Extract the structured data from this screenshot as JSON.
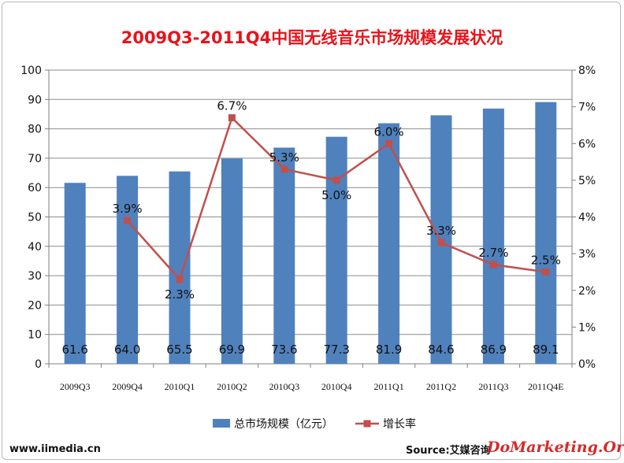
{
  "chart_data": {
    "type": "bar+line",
    "title": "2009Q3-2011Q4中国无线音乐市场规模发展状况",
    "categories": [
      "2009Q3",
      "2009Q4",
      "2010Q1",
      "2010Q2",
      "2010Q3",
      "2010Q4",
      "2011Q1",
      "2011Q2",
      "2011Q3",
      "2011Q4E"
    ],
    "series": [
      {
        "name": "总市场规模（亿元）",
        "type": "bar",
        "axis": "left",
        "color": "#4f81bd",
        "values": [
          61.6,
          64.0,
          65.5,
          69.9,
          73.6,
          77.3,
          81.9,
          84.6,
          86.9,
          89.1
        ],
        "labels": [
          "61.6",
          "64.0",
          "65.5",
          "69.9",
          "73.6",
          "77.3",
          "81.9",
          "84.6",
          "86.9",
          "89.1"
        ]
      },
      {
        "name": "增长率",
        "type": "line",
        "axis": "right",
        "color": "#c0504d",
        "values": [
          null,
          3.9,
          2.3,
          6.7,
          5.3,
          5.0,
          6.0,
          3.3,
          2.7,
          2.5
        ],
        "labels": [
          "",
          "3.9%",
          "2.3%",
          "6.7%",
          "5.3%",
          "5.0%",
          "6.0%",
          "3.3%",
          "2.7%",
          "2.5%"
        ]
      }
    ],
    "y_left": {
      "min": 0,
      "max": 100,
      "step": 10,
      "ticks": [
        "0",
        "10",
        "20",
        "30",
        "40",
        "50",
        "60",
        "70",
        "80",
        "90",
        "100"
      ]
    },
    "y_right": {
      "min": 0,
      "max": 8,
      "step": 1,
      "ticks": [
        "0%",
        "1%",
        "2%",
        "3%",
        "4%",
        "5%",
        "6%",
        "7%",
        "8%"
      ]
    },
    "grid": true,
    "legend": "bottom"
  },
  "footer": {
    "site": "www.iimedia.cn",
    "source": "Source:艾媒咨询",
    "watermark": "DoMarketing.Org"
  }
}
